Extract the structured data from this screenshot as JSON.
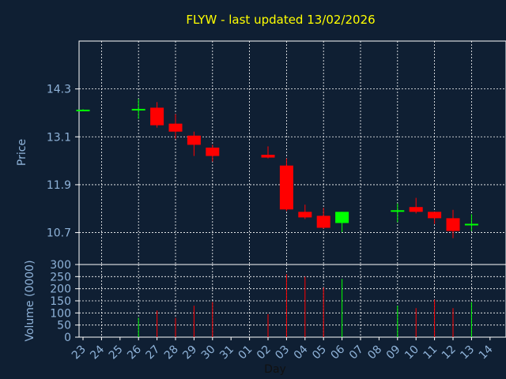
{
  "chart_data": [
    {
      "type": "candlestick",
      "title": "FLYW - last updated 13/02/2026",
      "ylabel": "Price",
      "ylim": [
        9.9,
        15.5
      ],
      "yticks": [
        "14.3",
        "13.1",
        "11.9",
        "10.7"
      ],
      "ytick_values": [
        14.3,
        13.1,
        11.9,
        10.7
      ],
      "grid": true,
      "colors": {
        "up": "#00ff00",
        "down": "#ff0000",
        "background": "#0f1f33",
        "plot": "#0f1f33",
        "grid": "#ffffff",
        "title": "#ffff00",
        "text": "#8fb3d9"
      },
      "candles": [
        {
          "x": "23",
          "open": 13.77,
          "high": 13.79,
          "low": 13.75,
          "close": 13.78
        },
        {
          "x": "26",
          "open": 13.79,
          "high": 14.05,
          "low": 13.55,
          "close": 13.8
        },
        {
          "x": "27",
          "open": 13.83,
          "high": 13.97,
          "low": 13.33,
          "close": 13.39
        },
        {
          "x": "28",
          "open": 13.43,
          "high": 13.67,
          "low": 13.05,
          "close": 13.23
        },
        {
          "x": "29",
          "open": 13.13,
          "high": 13.23,
          "low": 12.62,
          "close": 12.9
        },
        {
          "x": "30",
          "open": 12.83,
          "high": 12.9,
          "low": 12.48,
          "close": 12.62
        },
        {
          "x": "02",
          "open": 12.65,
          "high": 12.86,
          "low": 12.56,
          "close": 12.58
        },
        {
          "x": "03",
          "open": 12.38,
          "high": 12.56,
          "low": 11.24,
          "close": 11.28
        },
        {
          "x": "04",
          "open": 11.22,
          "high": 11.4,
          "low": 11.04,
          "close": 11.08
        },
        {
          "x": "05",
          "open": 11.12,
          "high": 11.32,
          "low": 10.8,
          "close": 10.82
        },
        {
          "x": "06",
          "open": 10.94,
          "high": 11.22,
          "low": 10.71,
          "close": 11.22
        },
        {
          "x": "09",
          "open": 11.24,
          "high": 11.43,
          "low": 10.96,
          "close": 11.26
        },
        {
          "x": "10",
          "open": 11.34,
          "high": 11.57,
          "low": 11.18,
          "close": 11.22
        },
        {
          "x": "11",
          "open": 11.22,
          "high": 11.22,
          "low": 10.92,
          "close": 11.06
        },
        {
          "x": "12",
          "open": 11.06,
          "high": 11.27,
          "low": 10.56,
          "close": 10.74
        },
        {
          "x": "13",
          "open": 10.91,
          "high": 11.16,
          "low": 10.74,
          "close": 10.92
        }
      ]
    },
    {
      "type": "bar",
      "xlabel": "Day",
      "ylabel": "Volume (0000)",
      "ylim": [
        0,
        300
      ],
      "yticks": [
        "300",
        "250",
        "200",
        "150",
        "100",
        "50",
        "0"
      ],
      "ytick_values": [
        300,
        250,
        200,
        150,
        100,
        50,
        0
      ],
      "categories": [
        "23",
        "24",
        "25",
        "26",
        "27",
        "28",
        "29",
        "30",
        "31",
        "01",
        "02",
        "03",
        "04",
        "05",
        "06",
        "07",
        "08",
        "09",
        "10",
        "11",
        "12",
        "13",
        "14"
      ],
      "bars": [
        {
          "x": "26",
          "value": 80,
          "color": "#00ff00"
        },
        {
          "x": "27",
          "value": 110,
          "color": "#ff0000"
        },
        {
          "x": "28",
          "value": 80,
          "color": "#ff0000"
        },
        {
          "x": "29",
          "value": 130,
          "color": "#ff0000"
        },
        {
          "x": "30",
          "value": 145,
          "color": "#ff0000"
        },
        {
          "x": "02",
          "value": 95,
          "color": "#ff0000"
        },
        {
          "x": "03",
          "value": 260,
          "color": "#ff0000"
        },
        {
          "x": "04",
          "value": 250,
          "color": "#ff0000"
        },
        {
          "x": "05",
          "value": 205,
          "color": "#ff0000"
        },
        {
          "x": "06",
          "value": 240,
          "color": "#00ff00"
        },
        {
          "x": "09",
          "value": 130,
          "color": "#00ff00"
        },
        {
          "x": "10",
          "value": 120,
          "color": "#ff0000"
        },
        {
          "x": "11",
          "value": 155,
          "color": "#ff0000"
        },
        {
          "x": "12",
          "value": 120,
          "color": "#ff0000"
        },
        {
          "x": "13",
          "value": 145,
          "color": "#00ff00"
        }
      ]
    }
  ]
}
